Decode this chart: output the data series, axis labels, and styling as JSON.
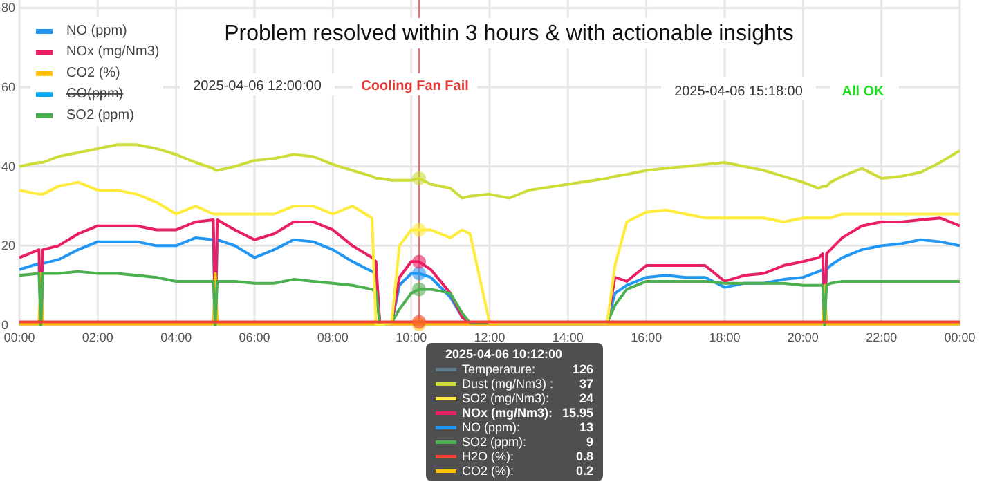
{
  "chart_data": {
    "type": "line",
    "title": "Problem resolved within 3 hours & with actionable insights",
    "x": [
      0,
      0.5,
      0.55,
      0.6,
      1,
      1.5,
      2,
      2.5,
      3,
      3.5,
      4,
      4.5,
      4.95,
      5,
      5.05,
      5.5,
      6,
      6.5,
      7,
      7.5,
      8,
      8.5,
      9,
      9.1,
      9.2,
      9.5,
      9.7,
      10,
      10.2,
      10.5,
      11,
      11.3,
      11.5,
      12,
      12.5,
      13,
      14,
      15,
      15.2,
      15.5,
      16,
      16.5,
      17,
      17.5,
      18,
      18.5,
      19,
      19.5,
      20,
      20.4,
      20.5,
      20.55,
      20.6,
      20.7,
      21,
      21.5,
      22,
      22.5,
      23,
      23.5,
      24
    ],
    "xlim": [
      0,
      24
    ],
    "xticks": [
      {
        "value": 0,
        "label": "00:00"
      },
      {
        "value": 2,
        "label": "02:00"
      },
      {
        "value": 4,
        "label": "04:00"
      },
      {
        "value": 6,
        "label": "06:00"
      },
      {
        "value": 8,
        "label": "08:00"
      },
      {
        "value": 10,
        "label": "10:00"
      },
      {
        "value": 12,
        "label": "12:00"
      },
      {
        "value": 14,
        "label": "14:00"
      },
      {
        "value": 16,
        "label": "16:00"
      },
      {
        "value": 18,
        "label": "18:00"
      },
      {
        "value": 20,
        "label": "20:00"
      },
      {
        "value": 22,
        "label": "22:00"
      },
      {
        "value": 24,
        "label": "00:00"
      }
    ],
    "ylim": [
      0,
      82
    ],
    "yticks": [
      0,
      20,
      40,
      60,
      80
    ],
    "grid": true,
    "legend": "top left",
    "line_style": "solid",
    "marker": "none",
    "series": [
      {
        "name": "NO (ppm)",
        "color": "#2196f3",
        "values": [
          14,
          15.5,
          0,
          15.5,
          16.5,
          19,
          21,
          21,
          21,
          20,
          20,
          22,
          21.5,
          0,
          21.5,
          20,
          17,
          19,
          21.5,
          21,
          19,
          16,
          13.5,
          13,
          0,
          0.5,
          10,
          13,
          13,
          12,
          7,
          2,
          0.5,
          0.5,
          0.5,
          0.5,
          0.5,
          0.5,
          8,
          10,
          12,
          12.5,
          12,
          12,
          9.5,
          10.5,
          10.5,
          11.5,
          12,
          13.5,
          14,
          0,
          14,
          15,
          17,
          19,
          20,
          20.5,
          21.5,
          21,
          20
        ]
      },
      {
        "name": "NOx (mg/Nm3)",
        "color": "#e91e63",
        "values": [
          17,
          19,
          0,
          19,
          20,
          23,
          25,
          25,
          25,
          24,
          24,
          26,
          26.5,
          0,
          26.5,
          24,
          21.5,
          23,
          26,
          26,
          24,
          20,
          17,
          16,
          0,
          0.5,
          12,
          16,
          15.95,
          14,
          8,
          2,
          0.5,
          0.5,
          0.5,
          0.5,
          0.5,
          0.5,
          12,
          11,
          15,
          15,
          15,
          15,
          11,
          12.5,
          13,
          15,
          16,
          17,
          18,
          0,
          18,
          19,
          22,
          25,
          26,
          26,
          26.5,
          27,
          25
        ]
      },
      {
        "name": "CO2 (%)",
        "color": "#ffc107",
        "values": [
          0.2,
          0.2,
          13,
          0.2,
          0.2,
          0.2,
          0.2,
          0.2,
          0.2,
          0.2,
          0.2,
          0.2,
          0.2,
          13,
          0.2,
          0.2,
          0.2,
          0.2,
          0.2,
          0.2,
          0.2,
          0.2,
          0.2,
          0.2,
          0.2,
          0.2,
          0.2,
          0.2,
          0.2,
          0.2,
          0.2,
          0.2,
          0.2,
          0.2,
          0.2,
          0.2,
          0.2,
          0.2,
          0.2,
          0.2,
          0.2,
          0.2,
          0.2,
          0.2,
          0.2,
          0.2,
          0.2,
          0.2,
          0.2,
          0.2,
          0.2,
          10,
          0.2,
          0.2,
          0.2,
          0.2,
          0.2,
          0.2,
          0.2,
          0.2,
          0.2
        ]
      },
      {
        "name": "CO(ppm)",
        "color": "#03a9f4",
        "values": [
          null,
          null,
          null,
          null,
          null,
          null,
          null,
          null,
          null,
          null,
          null,
          null,
          null,
          null,
          null,
          null,
          null,
          null,
          null,
          null,
          null,
          null,
          null,
          null,
          null,
          null,
          null,
          null,
          null,
          null,
          null,
          null,
          null,
          null,
          null,
          null,
          null,
          null,
          null,
          null,
          null,
          null,
          null,
          null,
          null,
          null,
          null,
          null,
          null,
          null,
          null,
          null,
          null,
          null,
          null,
          null,
          null,
          null,
          null,
          null,
          null
        ]
      },
      {
        "name": "SO2 (ppm)",
        "color": "#4caf50",
        "values": [
          12.5,
          13,
          0,
          13,
          13,
          13.5,
          13,
          13,
          12.5,
          12,
          11,
          11,
          11,
          0,
          11,
          11,
          10.5,
          10.5,
          11.5,
          11,
          10.5,
          10,
          9,
          8.5,
          0,
          0.5,
          4,
          8,
          9,
          9,
          8,
          3,
          0.5,
          0.5,
          0.5,
          0.5,
          0.5,
          0.5,
          5,
          9,
          11,
          11,
          11,
          11,
          10.5,
          10.5,
          10.5,
          10.5,
          10,
          10,
          10,
          0,
          10,
          10.5,
          11,
          11,
          11,
          11,
          11,
          11,
          11
        ]
      },
      {
        "color": "#607d8b",
        "values": [
          null,
          null,
          null,
          null,
          null,
          null,
          null,
          null,
          null,
          null,
          null,
          null,
          null,
          null,
          null,
          null,
          null,
          null,
          null,
          null,
          null,
          null,
          null,
          null,
          null,
          null,
          null,
          null,
          null,
          null,
          null,
          null,
          null,
          null,
          null,
          null,
          null,
          null,
          null,
          null,
          null,
          null,
          null,
          null,
          null,
          null,
          null,
          null,
          null,
          null,
          null,
          null,
          null,
          null,
          null,
          null,
          null,
          null,
          null,
          null,
          null
        ]
      },
      {
        "color": "#cddc39",
        "values": [
          40,
          41,
          41,
          41,
          42.5,
          43.5,
          44.5,
          45.5,
          45.5,
          44.5,
          43,
          41,
          39.5,
          39,
          39,
          40,
          41.5,
          42,
          43,
          42.5,
          40.5,
          39,
          37.5,
          37,
          37,
          36.5,
          36.5,
          36.5,
          37,
          35.5,
          34.5,
          32,
          32.5,
          33,
          32,
          34,
          35.5,
          37,
          37.5,
          38,
          39,
          39.5,
          40,
          40.5,
          41,
          40,
          39,
          37.5,
          36,
          34.5,
          35,
          35,
          35,
          36,
          37.5,
          39.5,
          37,
          37.5,
          38.5,
          41,
          44
        ]
      },
      {
        "color": "#ffeb3b",
        "values": [
          34,
          33,
          33,
          33,
          35,
          36,
          34,
          34,
          33,
          31,
          28,
          30,
          28,
          28,
          28,
          28,
          28,
          28,
          30,
          30,
          28,
          30,
          27,
          0,
          0,
          0.5,
          20,
          24,
          24,
          24,
          22,
          24,
          23,
          0.5,
          0.5,
          0.5,
          0.5,
          0.5,
          15,
          26,
          28.5,
          29,
          28,
          27,
          27,
          27,
          27,
          26,
          27,
          27,
          27,
          27,
          27,
          27,
          28,
          28,
          28,
          28,
          28,
          28,
          28
        ]
      },
      {
        "color": "#f44336",
        "values": [
          0.8,
          0.8,
          0.8,
          0.8,
          0.8,
          0.8,
          0.8,
          0.8,
          0.8,
          0.8,
          0.8,
          0.8,
          0.8,
          0.8,
          0.8,
          0.8,
          0.8,
          0.8,
          0.8,
          0.8,
          0.8,
          0.8,
          0.8,
          0.8,
          0.8,
          0.8,
          0.8,
          0.8,
          0.8,
          0.8,
          0.8,
          0.8,
          0.8,
          0.8,
          0.8,
          0.8,
          0.8,
          0.8,
          0.8,
          0.8,
          0.8,
          0.8,
          0.8,
          0.8,
          0.8,
          0.8,
          0.8,
          0.8,
          0.8,
          0.8,
          0.8,
          0.8,
          0.8,
          0.8,
          0.8,
          0.8,
          0.8,
          0.8,
          0.8,
          0.8,
          0.8
        ]
      }
    ],
    "ref_lines": [
      {
        "axis": "x",
        "value": 10.2,
        "color": "#e57373"
      }
    ],
    "annotations": [
      "2025-04-06 12:00:00",
      "Cooling Fan Fail",
      "2025-04-06 15:18:00",
      "All OK",
      "2025-04-06 10:12:00",
      "Temperature:",
      "126",
      "Dust (mg/Nm3) :",
      "37",
      "SO2 (mg/Nm3):",
      "24",
      "NOx (mg/Nm3):",
      "15.95",
      "NO (ppm):",
      "13",
      "SO2 (ppm):",
      "9",
      "H2O (%):",
      "0.8",
      "CO2 (%):",
      "0.2"
    ]
  }
}
